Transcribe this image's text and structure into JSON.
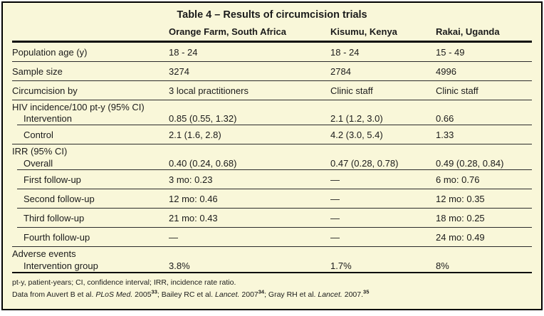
{
  "colors": {
    "table_background": "#f9f7d9",
    "frame_border": "#000000",
    "text": "#1b1b1b",
    "rule": "#2b2b2b"
  },
  "chart_data": {
    "type": "table",
    "title": "Table 4 – Results of circumcision trials",
    "columns": [
      "",
      "Orange Farm, South Africa",
      "Kisumu, Kenya",
      "Rakai, Uganda"
    ],
    "sections": [
      {
        "header": null,
        "rows": [
          [
            "Population age (y)",
            "18 - 24",
            "18 - 24",
            "15 - 49"
          ],
          [
            "Sample size",
            "3274",
            "2784",
            "4996"
          ],
          [
            "Circumcision by",
            "3 local practitioners",
            "Clinic staff",
            "Clinic staff"
          ]
        ]
      },
      {
        "header": "HIV incidence/100 pt-y (95% CI)",
        "rows": [
          [
            "Intervention",
            "0.85 (0.55, 1.32)",
            "2.1 (1.2, 3.0)",
            "0.66"
          ],
          [
            "Control",
            "2.1 (1.6, 2.8)",
            "4.2 (3.0, 5.4)",
            "1.33"
          ]
        ]
      },
      {
        "header": "IRR (95% CI)",
        "rows": [
          [
            "Overall",
            "0.40 (0.24, 0.68)",
            "0.47 (0.28, 0.78)",
            "0.49 (0.28, 0.84)"
          ],
          [
            "First follow-up",
            "3 mo: 0.23",
            "—",
            "6 mo: 0.76"
          ],
          [
            "Second follow-up",
            "12 mo: 0.46",
            "—",
            "12 mo: 0.35"
          ],
          [
            "Third follow-up",
            "21 mo: 0.43",
            "—",
            "18 mo: 0.25"
          ],
          [
            "Fourth follow-up",
            "—",
            "—",
            "24 mo: 0.49"
          ]
        ]
      },
      {
        "header": "Adverse events",
        "rows": [
          [
            "Intervention group",
            "3.8%",
            "1.7%",
            "8%"
          ]
        ]
      }
    ]
  },
  "footnotes": {
    "abbreviations": "pt-y, patient-years; CI, confidence interval; IRR, incidence rate ratio.",
    "sources": {
      "part1": "Data from Auvert B et al. ",
      "journal1": "PLoS Med.",
      "part2": " 2005",
      "ref1": "33",
      "part3": "; Bailey RC et al. ",
      "journal2": "Lancet.",
      "part4": " 2007",
      "ref2": "34",
      "part5": "; Gray RH et al. ",
      "journal3": "Lancet.",
      "part6": " 2007.",
      "ref3": "35"
    }
  }
}
